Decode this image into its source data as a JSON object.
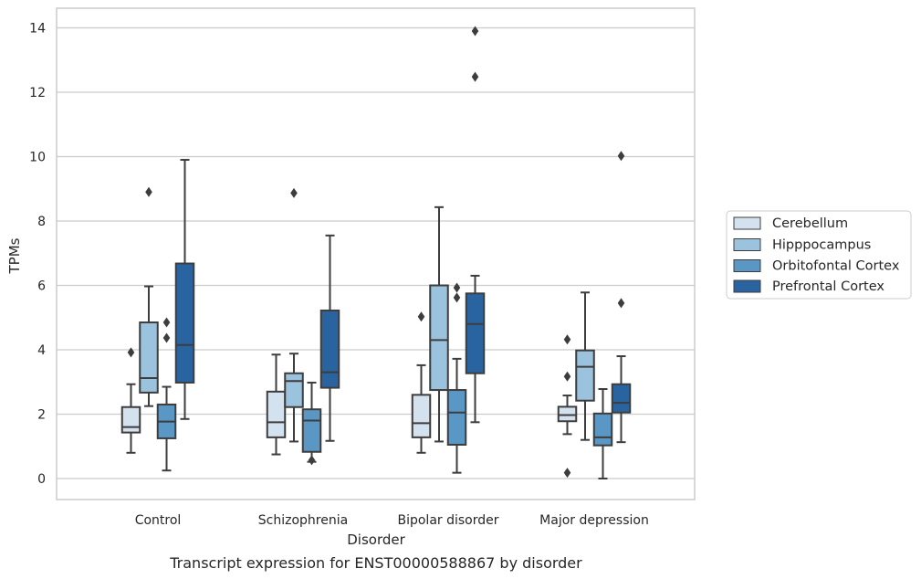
{
  "caption": "Transcript expression for ENST00000588867 by disorder",
  "chart_data": {
    "type": "box",
    "title": "",
    "xlabel": "Disorder",
    "ylabel": "TPMs",
    "ylim": [
      -0.65,
      14.6
    ],
    "yticks": [
      0,
      2,
      4,
      6,
      8,
      10,
      12,
      14
    ],
    "grid": "horizontal",
    "legend_position": "outside-right",
    "categories": [
      "Control",
      "Schizophrenia",
      "Bipolar disorder",
      "Major depression"
    ],
    "series": [
      {
        "name": "Cerebellum",
        "color": "#d4e1ee",
        "boxes": [
          {
            "whislo": 0.8,
            "q1": 1.43,
            "med": 1.6,
            "q3": 2.22,
            "whishi": 2.93,
            "fliers": [
              3.92
            ]
          },
          {
            "whislo": 0.75,
            "q1": 1.28,
            "med": 1.75,
            "q3": 2.7,
            "whishi": 3.85,
            "fliers": []
          },
          {
            "whislo": 0.8,
            "q1": 1.28,
            "med": 1.72,
            "q3": 2.6,
            "whishi": 3.52,
            "fliers": [
              5.03
            ]
          },
          {
            "whislo": 1.38,
            "q1": 1.78,
            "med": 1.97,
            "q3": 2.23,
            "whishi": 2.58,
            "fliers": [
              4.32,
              3.17,
              0.18
            ]
          }
        ]
      },
      {
        "name": "Hipppocampus",
        "color": "#9cc3dd",
        "boxes": [
          {
            "whislo": 2.25,
            "q1": 2.67,
            "med": 3.12,
            "q3": 4.85,
            "whishi": 5.97,
            "fliers": [
              8.9
            ]
          },
          {
            "whislo": 1.15,
            "q1": 2.22,
            "med": 3.03,
            "q3": 3.27,
            "whishi": 3.88,
            "fliers": [
              8.87
            ]
          },
          {
            "whislo": 1.15,
            "q1": 2.75,
            "med": 4.3,
            "q3": 6.0,
            "whishi": 8.43,
            "fliers": []
          },
          {
            "whislo": 1.2,
            "q1": 2.42,
            "med": 3.47,
            "q3": 3.98,
            "whishi": 5.78,
            "fliers": []
          }
        ]
      },
      {
        "name": "Orbitofontal Cortex",
        "color": "#5a97c5",
        "boxes": [
          {
            "whislo": 0.25,
            "q1": 1.25,
            "med": 1.77,
            "q3": 2.3,
            "whishi": 2.85,
            "fliers": [
              4.85,
              4.37
            ]
          },
          {
            "whislo": 0.52,
            "q1": 0.83,
            "med": 1.8,
            "q3": 2.15,
            "whishi": 2.98,
            "fliers": [
              0.57
            ]
          },
          {
            "whislo": 0.18,
            "q1": 1.05,
            "med": 2.05,
            "q3": 2.75,
            "whishi": 3.72,
            "fliers": [
              5.93,
              5.62
            ]
          },
          {
            "whislo": 0.0,
            "q1": 1.03,
            "med": 1.28,
            "q3": 2.02,
            "whishi": 2.78,
            "fliers": []
          }
        ]
      },
      {
        "name": "Prefrontal Cortex",
        "color": "#2a64a0",
        "boxes": [
          {
            "whislo": 1.85,
            "q1": 2.98,
            "med": 4.15,
            "q3": 6.68,
            "whishi": 9.9,
            "fliers": []
          },
          {
            "whislo": 1.17,
            "q1": 2.82,
            "med": 3.3,
            "q3": 5.22,
            "whishi": 7.55,
            "fliers": []
          },
          {
            "whislo": 1.75,
            "q1": 3.27,
            "med": 4.8,
            "q3": 5.75,
            "whishi": 6.3,
            "fliers": [
              13.9,
              12.48
            ]
          },
          {
            "whislo": 1.13,
            "q1": 2.05,
            "med": 2.35,
            "q3": 2.93,
            "whishi": 3.8,
            "fliers": [
              10.02,
              5.45
            ]
          }
        ]
      }
    ]
  },
  "colors": {
    "background": "#ffffff",
    "grid": "#cccccc",
    "spine": "#cccccc",
    "line": "#3d3d3d",
    "text": "#262626"
  }
}
